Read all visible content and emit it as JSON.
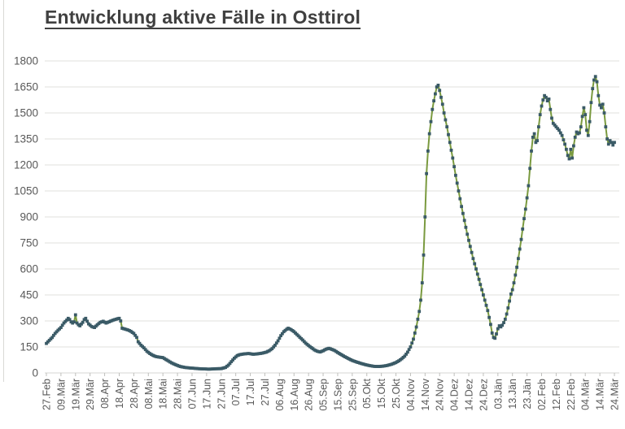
{
  "title": "Entwicklung aktive Fälle in Osttirol",
  "colors": {
    "line": "#7A9A3F",
    "marker": "#3A5A66",
    "grid": "#E0E0DD",
    "axis_line": "#D6D6D3",
    "tick": "#BFBFBC",
    "axis_text": "#595959",
    "title_text": "#404040",
    "background": "#FFFFFF"
  },
  "chart_data": {
    "type": "line",
    "title": "Entwicklung aktive Fälle in Osttirol",
    "xlabel": "",
    "ylabel": "",
    "ylim": [
      0,
      1800
    ],
    "y_ticks": [
      0,
      150,
      300,
      450,
      600,
      750,
      900,
      1050,
      1200,
      1350,
      1500,
      1650,
      1800
    ],
    "grid": "horizontal",
    "legend": "none",
    "sampling": "daily",
    "x_tick_interval_days": 10,
    "x_range_days": [
      0,
      390
    ],
    "x_tick_labels": [
      "27.Feb",
      "09.Mär",
      "19.Mär",
      "29.Mär",
      "08.Apr",
      "18.Apr",
      "28.Apr",
      "08.Mai",
      "18.Mai",
      "28.Mai",
      "07.Jun",
      "17.Jun",
      "27.Jun",
      "07.Jul",
      "17.Jul",
      "27.Jul",
      "06.Aug",
      "16.Aug",
      "26.Aug",
      "05.Sep",
      "15.Sep",
      "25.Sep",
      "05.Okt",
      "15.Okt",
      "25.Okt",
      "04.Nov",
      "14.Nov",
      "24.Nov",
      "04.Dez",
      "14.Dez",
      "24.Dez",
      "03.Jän",
      "13.Jän",
      "23.Jän",
      "02.Feb",
      "12.Feb",
      "22.Feb",
      "04.Mär",
      "14.Mär",
      "24.Mär"
    ],
    "series": [
      {
        "name": "aktive Fälle",
        "marker": "square",
        "keypoints": [
          [
            0,
            170
          ],
          [
            2,
            188
          ],
          [
            4,
            205
          ],
          [
            6,
            228
          ],
          [
            8,
            246
          ],
          [
            10,
            262
          ],
          [
            12,
            288
          ],
          [
            14,
            305
          ],
          [
            15,
            315
          ],
          [
            16,
            308
          ],
          [
            17,
            295
          ],
          [
            18,
            288
          ],
          [
            19,
            295
          ],
          [
            20,
            335
          ],
          [
            21,
            288
          ],
          [
            22,
            278
          ],
          [
            23,
            272
          ],
          [
            25,
            292
          ],
          [
            26,
            308
          ],
          [
            27,
            315
          ],
          [
            28,
            298
          ],
          [
            29,
            283
          ],
          [
            31,
            268
          ],
          [
            33,
            262
          ],
          [
            35,
            278
          ],
          [
            37,
            292
          ],
          [
            39,
            298
          ],
          [
            41,
            288
          ],
          [
            43,
            295
          ],
          [
            45,
            302
          ],
          [
            47,
            308
          ],
          [
            49,
            313
          ],
          [
            50,
            315
          ],
          [
            51,
            300
          ],
          [
            52,
            258
          ],
          [
            54,
            253
          ],
          [
            56,
            248
          ],
          [
            58,
            240
          ],
          [
            60,
            228
          ],
          [
            62,
            205
          ],
          [
            63,
            180
          ],
          [
            65,
            160
          ],
          [
            67,
            145
          ],
          [
            69,
            125
          ],
          [
            71,
            112
          ],
          [
            73,
            102
          ],
          [
            75,
            95
          ],
          [
            77,
            92
          ],
          [
            80,
            88
          ],
          [
            82,
            78
          ],
          [
            84,
            68
          ],
          [
            86,
            58
          ],
          [
            88,
            50
          ],
          [
            90,
            43
          ],
          [
            92,
            37
          ],
          [
            95,
            32
          ],
          [
            98,
            29
          ],
          [
            101,
            27
          ],
          [
            104,
            25
          ],
          [
            108,
            23
          ],
          [
            112,
            22
          ],
          [
            116,
            24
          ],
          [
            120,
            25
          ],
          [
            123,
            32
          ],
          [
            125,
            45
          ],
          [
            127,
            65
          ],
          [
            129,
            85
          ],
          [
            131,
            100
          ],
          [
            133,
            106
          ],
          [
            136,
            110
          ],
          [
            139,
            112
          ],
          [
            142,
            108
          ],
          [
            145,
            110
          ],
          [
            148,
            114
          ],
          [
            151,
            120
          ],
          [
            153,
            128
          ],
          [
            155,
            140
          ],
          [
            157,
            160
          ],
          [
            159,
            185
          ],
          [
            161,
            215
          ],
          [
            163,
            238
          ],
          [
            165,
            252
          ],
          [
            166,
            258
          ],
          [
            168,
            250
          ],
          [
            170,
            238
          ],
          [
            172,
            222
          ],
          [
            174,
            206
          ],
          [
            176,
            190
          ],
          [
            178,
            172
          ],
          [
            180,
            158
          ],
          [
            182,
            146
          ],
          [
            184,
            133
          ],
          [
            186,
            125
          ],
          [
            188,
            121
          ],
          [
            190,
            128
          ],
          [
            192,
            137
          ],
          [
            194,
            142
          ],
          [
            196,
            136
          ],
          [
            198,
            129
          ],
          [
            200,
            118
          ],
          [
            202,
            108
          ],
          [
            204,
            98
          ],
          [
            206,
            89
          ],
          [
            208,
            80
          ],
          [
            210,
            72
          ],
          [
            213,
            63
          ],
          [
            216,
            55
          ],
          [
            219,
            48
          ],
          [
            222,
            42
          ],
          [
            225,
            38
          ],
          [
            228,
            37
          ],
          [
            231,
            39
          ],
          [
            234,
            43
          ],
          [
            237,
            50
          ],
          [
            240,
            60
          ],
          [
            242,
            70
          ],
          [
            244,
            82
          ],
          [
            246,
            97
          ],
          [
            248,
            120
          ],
          [
            250,
            150
          ],
          [
            252,
            195
          ],
          [
            254,
            265
          ],
          [
            256,
            355
          ],
          [
            257,
            420
          ],
          [
            258,
            520
          ],
          [
            259,
            680
          ],
          [
            260,
            900
          ],
          [
            261,
            1150
          ],
          [
            262,
            1280
          ],
          [
            263,
            1380
          ],
          [
            264,
            1450
          ],
          [
            265,
            1520
          ],
          [
            266,
            1570
          ],
          [
            267,
            1610
          ],
          [
            268,
            1650
          ],
          [
            269,
            1660
          ],
          [
            270,
            1630
          ],
          [
            271,
            1590
          ],
          [
            272,
            1550
          ],
          [
            273,
            1500
          ],
          [
            275,
            1420
          ],
          [
            277,
            1330
          ],
          [
            279,
            1240
          ],
          [
            281,
            1140
          ],
          [
            283,
            1050
          ],
          [
            285,
            960
          ],
          [
            287,
            880
          ],
          [
            289,
            800
          ],
          [
            291,
            730
          ],
          [
            293,
            660
          ],
          [
            295,
            600
          ],
          [
            297,
            540
          ],
          [
            299,
            480
          ],
          [
            301,
            420
          ],
          [
            303,
            360
          ],
          [
            304,
            320
          ],
          [
            305,
            280
          ],
          [
            306,
            230
          ],
          [
            307,
            205
          ],
          [
            308,
            200
          ],
          [
            309,
            225
          ],
          [
            310,
            255
          ],
          [
            311,
            272
          ],
          [
            312,
            266
          ],
          [
            313,
            275
          ],
          [
            314,
            290
          ],
          [
            315,
            310
          ],
          [
            316,
            340
          ],
          [
            317,
            375
          ],
          [
            318,
            415
          ],
          [
            319,
            455
          ],
          [
            320,
            480
          ],
          [
            321,
            520
          ],
          [
            322,
            565
          ],
          [
            323,
            610
          ],
          [
            324,
            660
          ],
          [
            325,
            715
          ],
          [
            326,
            770
          ],
          [
            327,
            830
          ],
          [
            328,
            890
          ],
          [
            329,
            945
          ],
          [
            330,
            1010
          ],
          [
            331,
            1080
          ],
          [
            332,
            1180
          ],
          [
            333,
            1280
          ],
          [
            334,
            1360
          ],
          [
            335,
            1380
          ],
          [
            336,
            1330
          ],
          [
            337,
            1340
          ],
          [
            338,
            1420
          ],
          [
            339,
            1490
          ],
          [
            340,
            1540
          ],
          [
            341,
            1575
          ],
          [
            342,
            1600
          ],
          [
            343,
            1590
          ],
          [
            344,
            1570
          ],
          [
            345,
            1580
          ],
          [
            346,
            1520
          ],
          [
            347,
            1470
          ],
          [
            348,
            1440
          ],
          [
            349,
            1430
          ],
          [
            350,
            1420
          ],
          [
            352,
            1400
          ],
          [
            354,
            1370
          ],
          [
            356,
            1320
          ],
          [
            357,
            1290
          ],
          [
            358,
            1255
          ],
          [
            359,
            1235
          ],
          [
            360,
            1290
          ],
          [
            361,
            1240
          ],
          [
            362,
            1310
          ],
          [
            363,
            1360
          ],
          [
            364,
            1390
          ],
          [
            365,
            1380
          ],
          [
            366,
            1385
          ],
          [
            367,
            1420
          ],
          [
            368,
            1480
          ],
          [
            369,
            1530
          ],
          [
            370,
            1490
          ],
          [
            371,
            1400
          ],
          [
            372,
            1370
          ],
          [
            373,
            1450
          ],
          [
            374,
            1560
          ],
          [
            375,
            1640
          ],
          [
            376,
            1690
          ],
          [
            377,
            1710
          ],
          [
            378,
            1680
          ],
          [
            379,
            1600
          ],
          [
            380,
            1545
          ],
          [
            381,
            1530
          ],
          [
            382,
            1550
          ],
          [
            383,
            1500
          ],
          [
            384,
            1420
          ],
          [
            385,
            1350
          ],
          [
            386,
            1320
          ],
          [
            387,
            1340
          ],
          [
            388,
            1330
          ],
          [
            389,
            1315
          ],
          [
            390,
            1330
          ]
        ]
      }
    ]
  }
}
